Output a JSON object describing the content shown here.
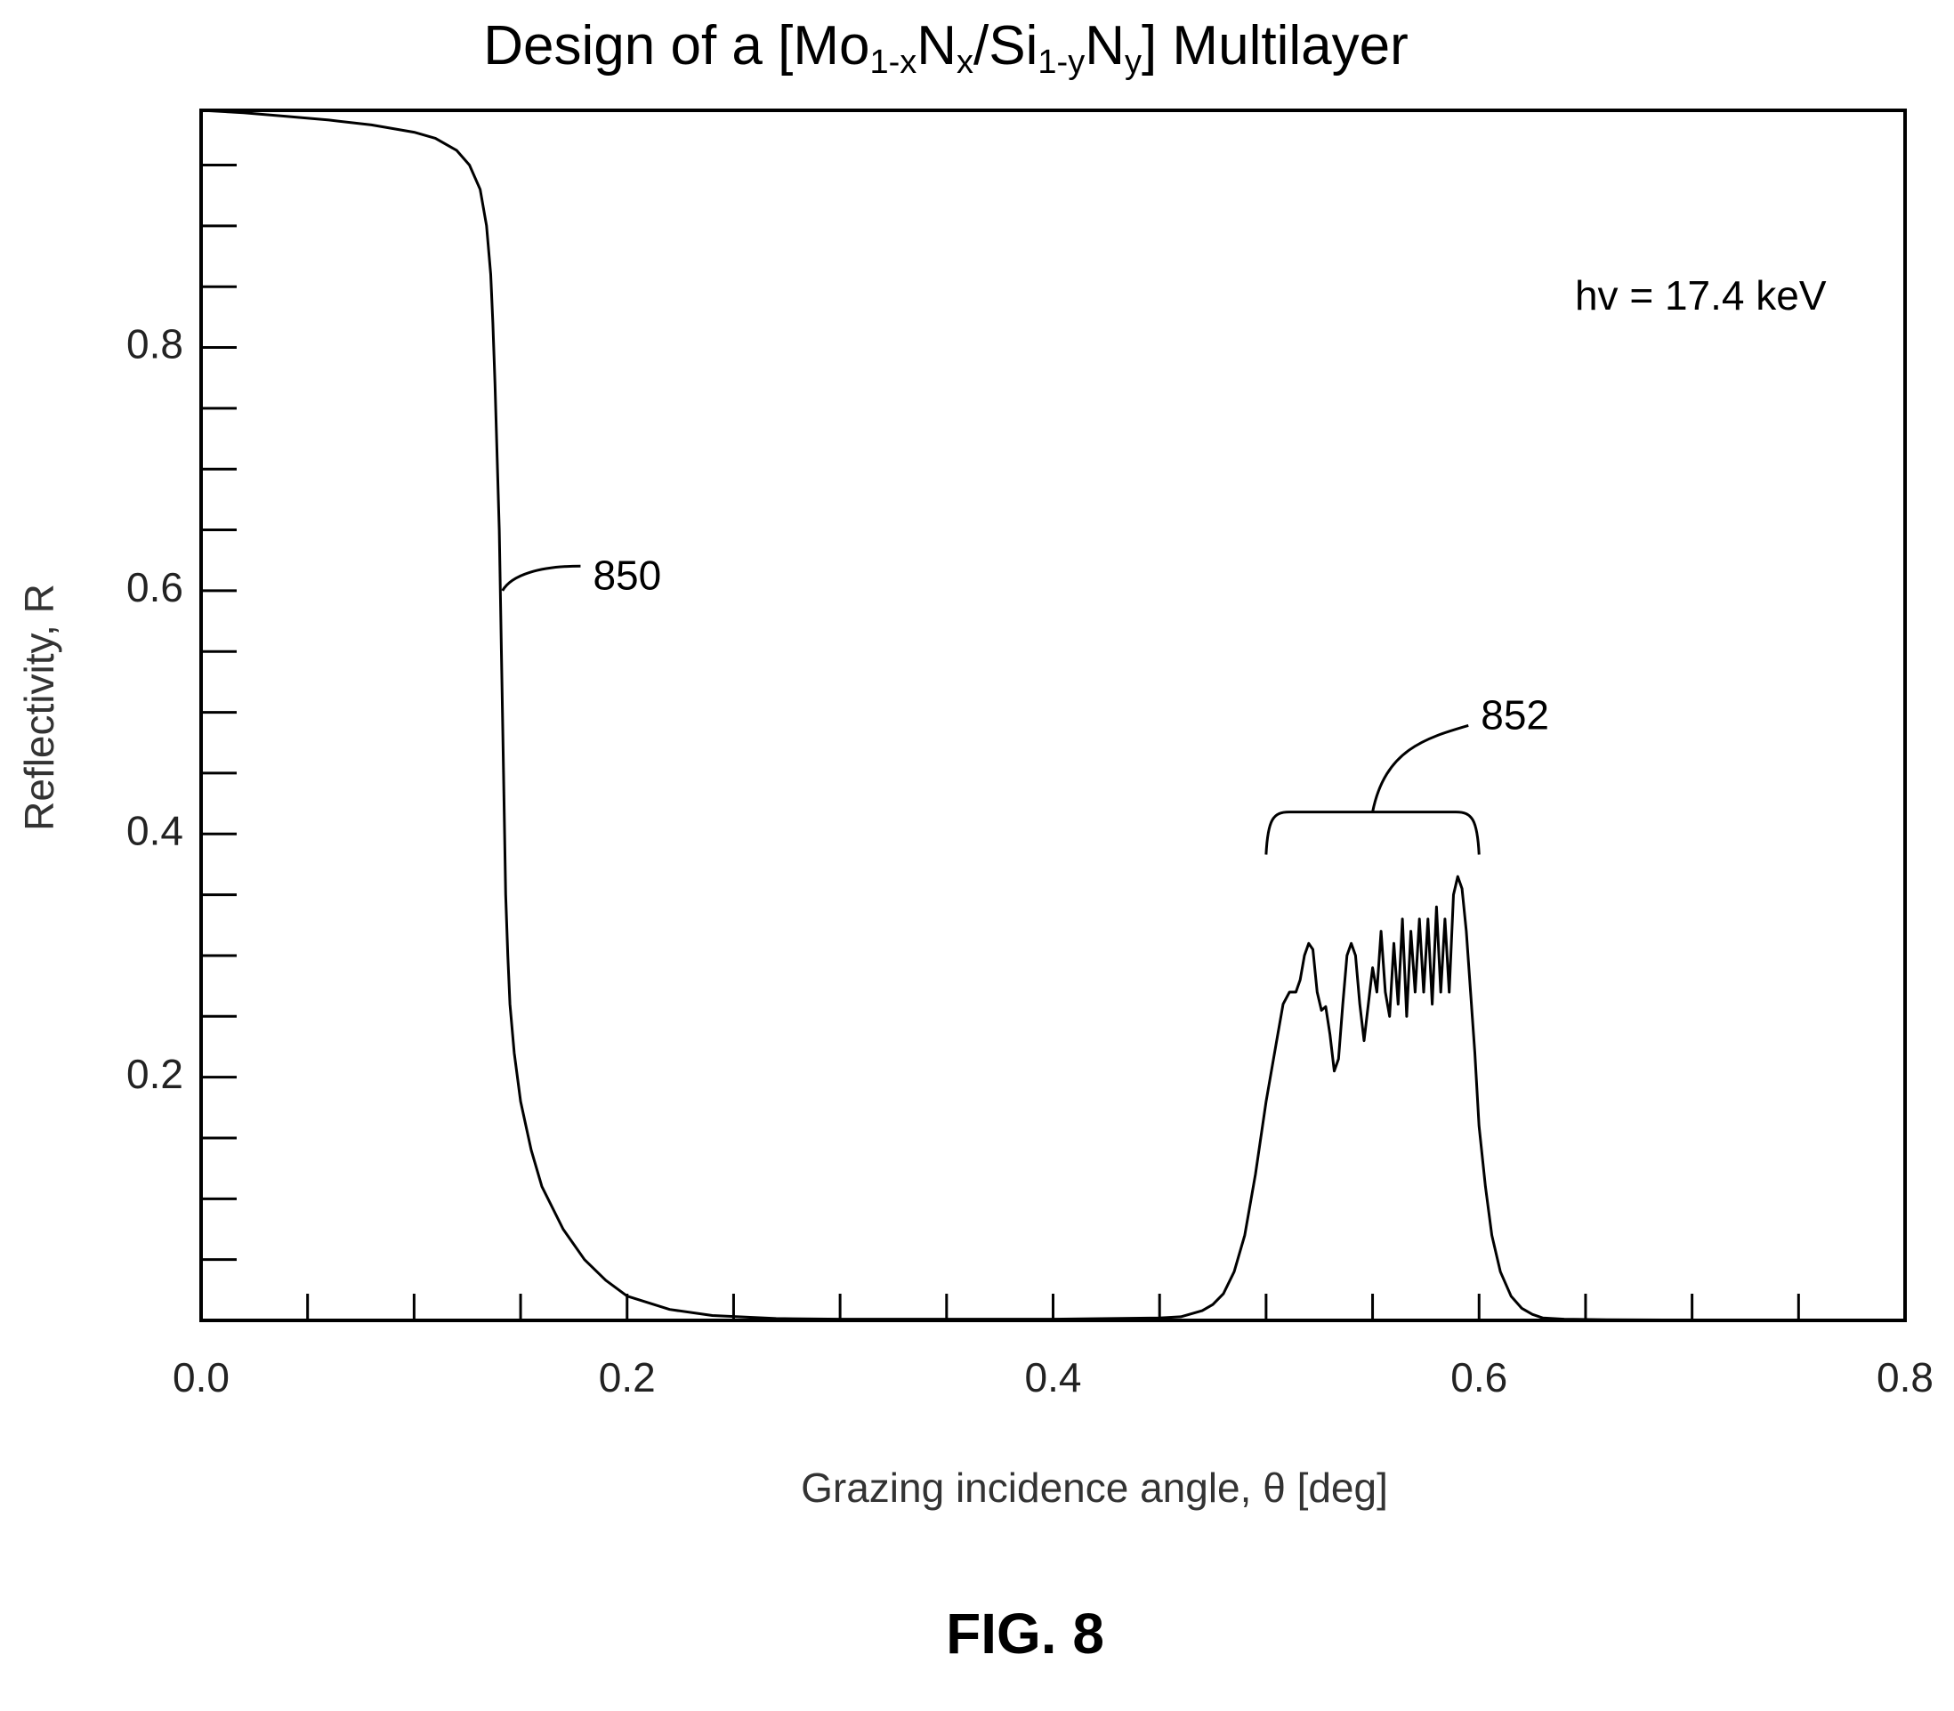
{
  "chart_data": {
    "type": "line",
    "title": {
      "prefix": "Design of a [Mo",
      "sub1": "1-x",
      "mid1": "N",
      "sub2": "x",
      "mid2": "/Si",
      "sub3": "1-y",
      "mid3": "N",
      "sub4": "y",
      "suffix": "] Multilayer"
    },
    "xlabel": "Grazing incidence angle, θ [deg]",
    "ylabel": "Reflectivity, R",
    "xlim": [
      0.0,
      0.8
    ],
    "ylim": [
      0.0,
      0.995
    ],
    "x_tick_labels": [
      {
        "value": 0.0,
        "label": "0.0"
      },
      {
        "value": 0.2,
        "label": "0.2"
      },
      {
        "value": 0.4,
        "label": "0.4"
      },
      {
        "value": 0.6,
        "label": "0.6"
      },
      {
        "value": 0.8,
        "label": "0.8"
      }
    ],
    "y_tick_labels": [
      {
        "value": 0.2,
        "label": "0.2"
      },
      {
        "value": 0.4,
        "label": "0.4"
      },
      {
        "value": 0.6,
        "label": "0.6"
      },
      {
        "value": 0.8,
        "label": "0.8"
      }
    ],
    "x_minor_step": 0.05,
    "y_minor_step": 0.05,
    "grid": false,
    "annotations": [
      {
        "id": "850",
        "text": "850",
        "target": [
          0.1415,
          0.6
        ],
        "label_at": [
          0.184,
          0.61
        ]
      },
      {
        "id": "852",
        "text": "852",
        "bracket": [
          0.5,
          0.6
        ],
        "label_at": [
          0.6,
          0.495
        ]
      },
      {
        "id": "energy",
        "text": "hv = 17.4 keV",
        "label_at": [
          0.645,
          0.84
        ]
      }
    ],
    "series": [
      {
        "points": [
          [
            0.0,
            0.995
          ],
          [
            0.02,
            0.993
          ],
          [
            0.04,
            0.99
          ],
          [
            0.06,
            0.987
          ],
          [
            0.08,
            0.983
          ],
          [
            0.1,
            0.977
          ],
          [
            0.11,
            0.972
          ],
          [
            0.12,
            0.962
          ],
          [
            0.126,
            0.95
          ],
          [
            0.131,
            0.93
          ],
          [
            0.134,
            0.9
          ],
          [
            0.136,
            0.86
          ],
          [
            0.137,
            0.82
          ],
          [
            0.138,
            0.77
          ],
          [
            0.139,
            0.71
          ],
          [
            0.14,
            0.65
          ],
          [
            0.1405,
            0.6
          ],
          [
            0.141,
            0.55
          ],
          [
            0.1415,
            0.5
          ],
          [
            0.142,
            0.45
          ],
          [
            0.1425,
            0.4
          ],
          [
            0.143,
            0.35
          ],
          [
            0.144,
            0.3
          ],
          [
            0.145,
            0.26
          ],
          [
            0.147,
            0.22
          ],
          [
            0.15,
            0.18
          ],
          [
            0.155,
            0.14
          ],
          [
            0.16,
            0.11
          ],
          [
            0.17,
            0.075
          ],
          [
            0.18,
            0.05
          ],
          [
            0.19,
            0.033
          ],
          [
            0.2,
            0.02
          ],
          [
            0.22,
            0.009
          ],
          [
            0.24,
            0.004
          ],
          [
            0.27,
            0.0015
          ],
          [
            0.3,
            0.001
          ],
          [
            0.35,
            0.001
          ],
          [
            0.4,
            0.001
          ],
          [
            0.45,
            0.002
          ],
          [
            0.46,
            0.003
          ],
          [
            0.47,
            0.008
          ],
          [
            0.475,
            0.013
          ],
          [
            0.48,
            0.022
          ],
          [
            0.485,
            0.04
          ],
          [
            0.49,
            0.07
          ],
          [
            0.495,
            0.12
          ],
          [
            0.5,
            0.18
          ],
          [
            0.505,
            0.23
          ],
          [
            0.508,
            0.26
          ],
          [
            0.511,
            0.27
          ],
          [
            0.514,
            0.27
          ],
          [
            0.516,
            0.28
          ],
          [
            0.518,
            0.3
          ],
          [
            0.52,
            0.31
          ],
          [
            0.522,
            0.305
          ],
          [
            0.524,
            0.27
          ],
          [
            0.526,
            0.255
          ],
          [
            0.528,
            0.258
          ],
          [
            0.53,
            0.235
          ],
          [
            0.532,
            0.205
          ],
          [
            0.534,
            0.215
          ],
          [
            0.536,
            0.26
          ],
          [
            0.538,
            0.3
          ],
          [
            0.54,
            0.31
          ],
          [
            0.542,
            0.3
          ],
          [
            0.544,
            0.26
          ],
          [
            0.546,
            0.23
          ],
          [
            0.548,
            0.26
          ],
          [
            0.55,
            0.29
          ],
          [
            0.552,
            0.27
          ],
          [
            0.554,
            0.32
          ],
          [
            0.556,
            0.27
          ],
          [
            0.558,
            0.25
          ],
          [
            0.56,
            0.31
          ],
          [
            0.562,
            0.26
          ],
          [
            0.564,
            0.33
          ],
          [
            0.566,
            0.25
          ],
          [
            0.568,
            0.32
          ],
          [
            0.57,
            0.27
          ],
          [
            0.572,
            0.33
          ],
          [
            0.574,
            0.27
          ],
          [
            0.576,
            0.33
          ],
          [
            0.578,
            0.26
          ],
          [
            0.58,
            0.34
          ],
          [
            0.582,
            0.27
          ],
          [
            0.584,
            0.33
          ],
          [
            0.586,
            0.27
          ],
          [
            0.588,
            0.35
          ],
          [
            0.59,
            0.365
          ],
          [
            0.592,
            0.355
          ],
          [
            0.594,
            0.32
          ],
          [
            0.596,
            0.27
          ],
          [
            0.598,
            0.22
          ],
          [
            0.6,
            0.16
          ],
          [
            0.603,
            0.11
          ],
          [
            0.606,
            0.07
          ],
          [
            0.61,
            0.04
          ],
          [
            0.615,
            0.02
          ],
          [
            0.62,
            0.01
          ],
          [
            0.625,
            0.005
          ],
          [
            0.63,
            0.002
          ],
          [
            0.64,
            0.001
          ],
          [
            0.66,
            0.0005
          ],
          [
            0.7,
            0.0003
          ],
          [
            0.8,
            0.0002
          ]
        ]
      }
    ]
  },
  "figure": {
    "caption": "FIG. 8"
  }
}
